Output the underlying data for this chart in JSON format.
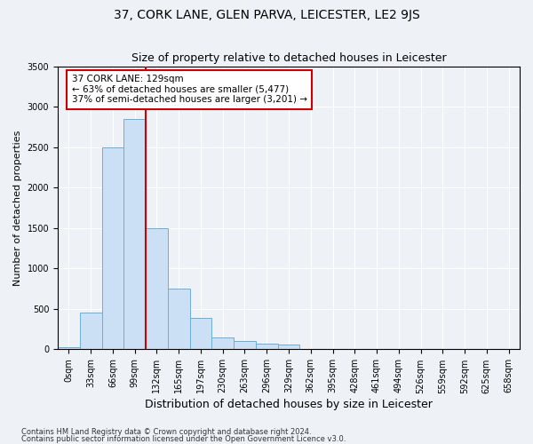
{
  "title": "37, CORK LANE, GLEN PARVA, LEICESTER, LE2 9JS",
  "subtitle": "Size of property relative to detached houses in Leicester",
  "xlabel": "Distribution of detached houses by size in Leicester",
  "ylabel": "Number of detached properties",
  "bar_categories": [
    "0sqm",
    "33sqm",
    "66sqm",
    "99sqm",
    "132sqm",
    "165sqm",
    "197sqm",
    "230sqm",
    "263sqm",
    "296sqm",
    "329sqm",
    "362sqm",
    "395sqm",
    "428sqm",
    "461sqm",
    "494sqm",
    "526sqm",
    "559sqm",
    "592sqm",
    "625sqm",
    "658sqm"
  ],
  "bar_values": [
    30,
    450,
    2500,
    2850,
    1500,
    750,
    390,
    150,
    100,
    75,
    60,
    0,
    0,
    0,
    0,
    0,
    0,
    0,
    0,
    0,
    0
  ],
  "bar_color": "#cce0f5",
  "bar_edge_color": "#6aaed6",
  "vline_color": "#cc0000",
  "annotation_text": "37 CORK LANE: 129sqm\n← 63% of detached houses are smaller (5,477)\n37% of semi-detached houses are larger (3,201) →",
  "annotation_box_color": "white",
  "annotation_box_edge": "#cc0000",
  "ylim": [
    0,
    3500
  ],
  "yticks": [
    0,
    500,
    1000,
    1500,
    2000,
    2500,
    3000,
    3500
  ],
  "background_color": "#eef2f7",
  "axes_background": "#eef2f7",
  "footer1": "Contains HM Land Registry data © Crown copyright and database right 2024.",
  "footer2": "Contains public sector information licensed under the Open Government Licence v3.0.",
  "title_fontsize": 10,
  "subtitle_fontsize": 9,
  "tick_fontsize": 7,
  "xlabel_fontsize": 9,
  "ylabel_fontsize": 8
}
